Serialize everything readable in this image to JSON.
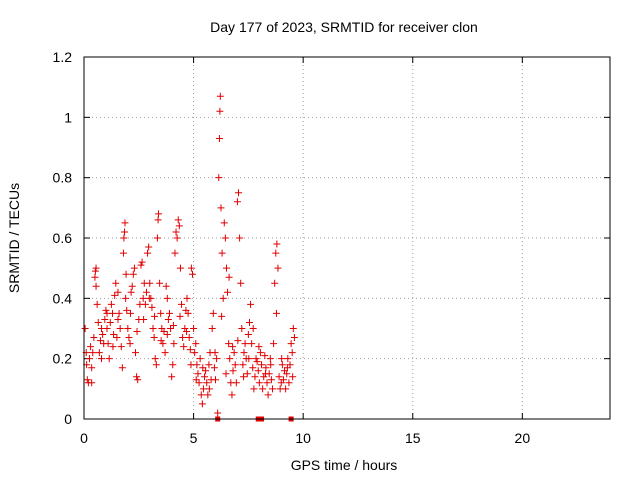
{
  "chart_data": {
    "type": "scatter",
    "title": "Day 177 of 2023, SRMTID for receiver clon",
    "xlabel": "GPS time / hours",
    "ylabel": "SRMTID / TECUs",
    "xlim": [
      0,
      24
    ],
    "ylim": [
      0,
      1.2
    ],
    "xticks": [
      0,
      5,
      10,
      15,
      20
    ],
    "xtick_labels": [
      "0",
      "5",
      "10",
      "15",
      "20"
    ],
    "yticks": [
      0,
      0.2,
      0.4,
      0.6,
      0.8,
      1,
      1.2
    ],
    "ytick_labels": [
      "0",
      "0.2",
      "0.4",
      "0.6",
      "0.8",
      "1",
      "1.2"
    ],
    "grid": true,
    "marker": "plus",
    "color": "#e00000",
    "series": [
      {
        "name": "SRMTID",
        "points": [
          [
            0.05,
            0.3
          ],
          [
            0.1,
            0.22
          ],
          [
            0.15,
            0.13
          ],
          [
            0.2,
            0.12
          ],
          [
            0.25,
            0.2
          ],
          [
            0.3,
            0.24
          ],
          [
            0.35,
            0.17
          ],
          [
            0.4,
            0.22
          ],
          [
            0.45,
            0.27
          ],
          [
            0.5,
            0.47
          ],
          [
            0.52,
            0.49
          ],
          [
            0.55,
            0.5
          ],
          [
            0.6,
            0.38
          ],
          [
            0.65,
            0.32
          ],
          [
            0.7,
            0.22
          ],
          [
            0.75,
            0.26
          ],
          [
            0.8,
            0.3
          ],
          [
            0.85,
            0.28
          ],
          [
            0.9,
            0.25
          ],
          [
            0.95,
            0.33
          ],
          [
            1.0,
            0.36
          ],
          [
            1.05,
            0.3
          ],
          [
            1.1,
            0.25
          ],
          [
            1.15,
            0.2
          ],
          [
            1.2,
            0.32
          ],
          [
            1.25,
            0.38
          ],
          [
            1.3,
            0.35
          ],
          [
            1.35,
            0.28
          ],
          [
            1.4,
            0.41
          ],
          [
            1.45,
            0.45
          ],
          [
            1.5,
            0.27
          ],
          [
            1.55,
            0.33
          ],
          [
            1.6,
            0.35
          ],
          [
            1.65,
            0.3
          ],
          [
            1.7,
            0.24
          ],
          [
            1.75,
            0.17
          ],
          [
            1.8,
            0.55
          ],
          [
            1.82,
            0.6
          ],
          [
            1.85,
            0.62
          ],
          [
            1.87,
            0.65
          ],
          [
            1.9,
            0.4
          ],
          [
            1.95,
            0.36
          ],
          [
            2.0,
            0.3
          ],
          [
            2.05,
            0.27
          ],
          [
            2.1,
            0.25
          ],
          [
            2.15,
            0.42
          ],
          [
            2.2,
            0.44
          ],
          [
            2.25,
            0.48
          ],
          [
            2.3,
            0.5
          ],
          [
            2.35,
            0.22
          ],
          [
            2.4,
            0.14
          ],
          [
            2.45,
            0.13
          ],
          [
            2.5,
            0.33
          ],
          [
            2.55,
            0.38
          ],
          [
            2.6,
            0.51
          ],
          [
            2.65,
            0.52
          ],
          [
            2.7,
            0.4
          ],
          [
            2.75,
            0.45
          ],
          [
            2.8,
            0.38
          ],
          [
            2.85,
            0.42
          ],
          [
            2.9,
            0.55
          ],
          [
            2.95,
            0.57
          ],
          [
            3.0,
            0.45
          ],
          [
            3.05,
            0.4
          ],
          [
            3.1,
            0.37
          ],
          [
            3.15,
            0.3
          ],
          [
            3.2,
            0.27
          ],
          [
            3.25,
            0.2
          ],
          [
            3.3,
            0.18
          ],
          [
            3.35,
            0.6
          ],
          [
            3.38,
            0.66
          ],
          [
            3.4,
            0.68
          ],
          [
            3.45,
            0.45
          ],
          [
            3.5,
            0.35
          ],
          [
            3.55,
            0.3
          ],
          [
            3.6,
            0.25
          ],
          [
            3.65,
            0.29
          ],
          [
            3.7,
            0.22
          ],
          [
            3.75,
            0.44
          ],
          [
            3.8,
            0.4
          ],
          [
            3.85,
            0.33
          ],
          [
            3.9,
            0.35
          ],
          [
            3.95,
            0.3
          ],
          [
            4.0,
            0.14
          ],
          [
            4.05,
            0.18
          ],
          [
            4.1,
            0.25
          ],
          [
            4.15,
            0.55
          ],
          [
            4.2,
            0.62
          ],
          [
            4.25,
            0.6
          ],
          [
            4.3,
            0.66
          ],
          [
            4.35,
            0.64
          ],
          [
            4.4,
            0.5
          ],
          [
            4.45,
            0.38
          ],
          [
            4.5,
            0.27
          ],
          [
            4.55,
            0.24
          ],
          [
            4.6,
            0.3
          ],
          [
            4.65,
            0.36
          ],
          [
            4.7,
            0.4
          ],
          [
            4.75,
            0.35
          ],
          [
            4.8,
            0.27
          ],
          [
            4.85,
            0.23
          ],
          [
            4.9,
            0.5
          ],
          [
            4.95,
            0.48
          ],
          [
            5.0,
            0.3
          ],
          [
            5.05,
            0.22
          ],
          [
            5.1,
            0.25
          ],
          [
            5.15,
            0.18
          ],
          [
            5.2,
            0.15
          ],
          [
            5.25,
            0.12
          ],
          [
            5.3,
            0.2
          ],
          [
            5.35,
            0.08
          ],
          [
            5.4,
            0.05
          ],
          [
            5.45,
            0.1
          ],
          [
            5.5,
            0.14
          ],
          [
            5.55,
            0.16
          ],
          [
            5.6,
            0.12
          ],
          [
            5.65,
            0.08
          ],
          [
            5.7,
            0.18
          ],
          [
            5.75,
            0.22
          ],
          [
            5.8,
            0.13
          ],
          [
            5.85,
            0.3
          ],
          [
            5.9,
            0.35
          ],
          [
            5.95,
            0.17
          ],
          [
            6.0,
            0.13
          ],
          [
            6.05,
            0.2
          ],
          [
            6.1,
            0.02
          ],
          [
            6.15,
            0.8
          ],
          [
            6.18,
            0.93
          ],
          [
            6.2,
            1.02
          ],
          [
            6.22,
            1.07
          ],
          [
            6.25,
            0.7
          ],
          [
            6.3,
            0.55
          ],
          [
            6.35,
            0.4
          ],
          [
            6.4,
            0.65
          ],
          [
            6.45,
            0.6
          ],
          [
            6.5,
            0.5
          ],
          [
            6.55,
            0.42
          ],
          [
            6.6,
            0.25
          ],
          [
            6.65,
            0.2
          ],
          [
            6.7,
            0.12
          ],
          [
            6.75,
            0.08
          ],
          [
            6.8,
            0.16
          ],
          [
            6.85,
            0.22
          ],
          [
            6.9,
            0.18
          ],
          [
            6.95,
            0.12
          ],
          [
            7.0,
            0.72
          ],
          [
            7.05,
            0.75
          ],
          [
            7.1,
            0.6
          ],
          [
            7.15,
            0.45
          ],
          [
            7.2,
            0.3
          ],
          [
            7.25,
            0.18
          ],
          [
            7.3,
            0.22
          ],
          [
            7.35,
            0.25
          ],
          [
            7.4,
            0.2
          ],
          [
            7.45,
            0.15
          ],
          [
            7.5,
            0.28
          ],
          [
            7.55,
            0.32
          ],
          [
            7.6,
            0.38
          ],
          [
            7.65,
            0.25
          ],
          [
            7.7,
            0.17
          ],
          [
            7.75,
            0.1
          ],
          [
            7.8,
            0.14
          ],
          [
            7.85,
            0.2
          ],
          [
            7.9,
            0.19
          ],
          [
            7.95,
            0.16
          ],
          [
            8.0,
            0.12
          ],
          [
            8.05,
            0.22
          ],
          [
            8.1,
            0.18
          ],
          [
            8.15,
            0.1
          ],
          [
            8.2,
            0.14
          ],
          [
            8.25,
            0.21
          ],
          [
            8.3,
            0.17
          ],
          [
            8.35,
            0.12
          ],
          [
            8.4,
            0.08
          ],
          [
            8.45,
            0.15
          ],
          [
            8.5,
            0.2
          ],
          [
            8.55,
            0.13
          ],
          [
            8.6,
            0.1
          ],
          [
            8.65,
            0.25
          ],
          [
            8.7,
            0.45
          ],
          [
            8.75,
            0.55
          ],
          [
            8.8,
            0.58
          ],
          [
            8.85,
            0.5
          ],
          [
            8.9,
            0.14
          ],
          [
            8.95,
            0.1
          ],
          [
            9.0,
            0.12
          ],
          [
            9.05,
            0.18
          ],
          [
            9.1,
            0.13
          ],
          [
            9.15,
            0.16
          ],
          [
            9.2,
            0.1
          ],
          [
            9.25,
            0.15
          ],
          [
            9.3,
            0.2
          ],
          [
            9.35,
            0.12
          ],
          [
            9.4,
            0.18
          ],
          [
            9.45,
            0.25
          ],
          [
            9.5,
            0.22
          ],
          [
            9.55,
            0.3
          ],
          [
            9.6,
            0.27
          ],
          [
            0.12,
            0.18
          ],
          [
            0.35,
            0.12
          ],
          [
            0.55,
            0.44
          ],
          [
            0.8,
            0.2
          ],
          [
            1.05,
            0.35
          ],
          [
            1.32,
            0.24
          ],
          [
            1.55,
            0.42
          ],
          [
            1.92,
            0.48
          ],
          [
            2.12,
            0.35
          ],
          [
            2.42,
            0.29
          ],
          [
            2.72,
            0.33
          ],
          [
            2.98,
            0.4
          ],
          [
            3.22,
            0.34
          ],
          [
            3.52,
            0.26
          ],
          [
            3.8,
            0.28
          ],
          [
            4.08,
            0.31
          ],
          [
            4.38,
            0.34
          ],
          [
            4.68,
            0.29
          ],
          [
            4.88,
            0.18
          ],
          [
            5.12,
            0.13
          ],
          [
            5.42,
            0.17
          ],
          [
            5.72,
            0.1
          ],
          [
            5.98,
            0.22
          ],
          [
            6.28,
            0.34
          ],
          [
            6.48,
            0.15
          ],
          [
            6.62,
            0.47
          ],
          [
            6.78,
            0.24
          ],
          [
            7.02,
            0.26
          ],
          [
            7.28,
            0.14
          ],
          [
            7.52,
            0.2
          ],
          [
            7.72,
            0.3
          ],
          [
            7.98,
            0.24
          ],
          [
            8.28,
            0.15
          ],
          [
            8.52,
            0.18
          ],
          [
            8.78,
            0.35
          ],
          [
            9.02,
            0.2
          ],
          [
            9.28,
            0.17
          ],
          [
            9.52,
            0.14
          ]
        ]
      }
    ],
    "flagged_points": [
      [
        6.1,
        0
      ],
      [
        7.95,
        0
      ],
      [
        9.45,
        0
      ],
      [
        8.1,
        0
      ]
    ]
  }
}
